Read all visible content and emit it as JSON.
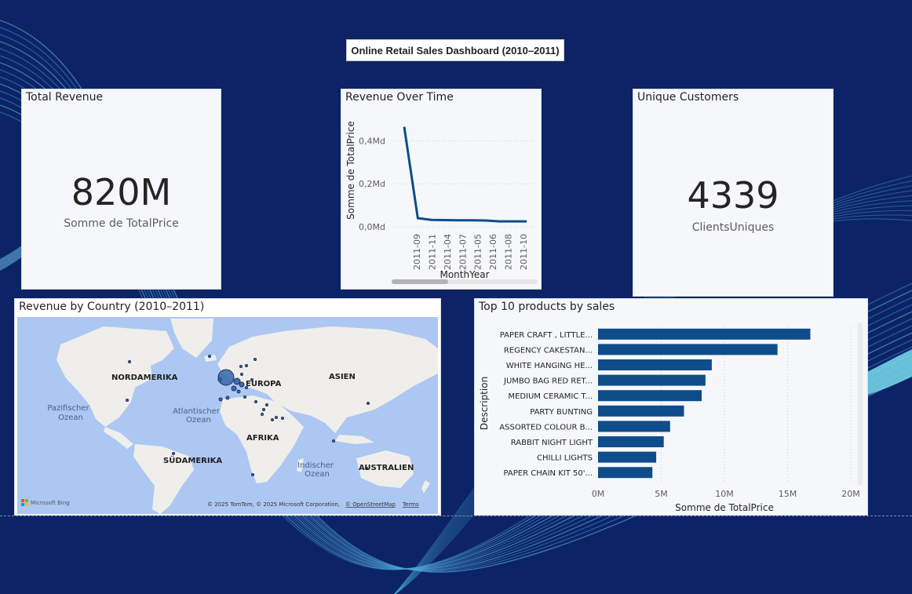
{
  "dashboard_title": "Online Retail Sales Dashboard (2010–2011)",
  "kpi_revenue": {
    "title": "Total Revenue",
    "value": "820M",
    "label": "Somme de TotalPrice"
  },
  "kpi_customers": {
    "title": "Unique Customers",
    "value": "4339",
    "label": "ClientsUniques"
  },
  "line_card": {
    "title": "Revenue Over Time"
  },
  "map_card": {
    "title": "Revenue by Country (2010–2011)",
    "labels": {
      "na": "NORDAMERIKA",
      "eu": "EUROPA",
      "asia": "ASIEN",
      "africa": "AFRIKA",
      "sa": "SÜDAMERIKA",
      "au": "AUSTRALIEN",
      "pac1": "Pazifischer",
      "pac2": "Ozean",
      "atl1": "Atlantischer",
      "atl2": "Ozean",
      "ind1": "Indischer",
      "ind2": "Ozean"
    },
    "bing": "Microsoft Bing",
    "copyright": "© 2025 TomTom, © 2025 Microsoft Corporation,",
    "osm_link": "© OpenStreetMap",
    "terms_link": "Terms"
  },
  "bar_card": {
    "title": "Top 10 products by sales"
  },
  "colors": {
    "series": "#0f4c8a",
    "background": "#0c2466",
    "card": "#f5f7fa"
  },
  "chart_data": [
    {
      "type": "line",
      "title": "Revenue Over Time",
      "xlabel": "MonthYear",
      "ylabel": "Somme de TotalPrice",
      "x_tick_labels": [
        "2011-09",
        "2011-11",
        "2011-04",
        "2011-07",
        "2011-05",
        "2011-06",
        "2011-08",
        "2011-10"
      ],
      "y_tick_labels": [
        "0,0Md",
        "0,2Md",
        "0,4Md"
      ],
      "y_ticks": [
        0,
        0.2,
        0.4
      ],
      "ylim": [
        0,
        0.5
      ],
      "series": [
        {
          "x_index": [
            0,
            1,
            2,
            3,
            4,
            5,
            6,
            7,
            8,
            9
          ],
          "values": [
            0.465,
            0.04,
            0.032,
            0.031,
            0.03,
            0.03,
            0.029,
            0.025,
            0.025,
            0.025
          ]
        }
      ],
      "grid": true
    },
    {
      "type": "bar",
      "orientation": "horizontal",
      "title": "Top 10 products by sales",
      "xlabel": "Somme de TotalPrice",
      "ylabel": "Description",
      "categories": [
        "PAPER CRAFT , LITTLE...",
        "REGENCY CAKESTAN...",
        "WHITE HANGING HE...",
        "JUMBO BAG RED RET...",
        "MEDIUM CERAMIC T...",
        "PARTY BUNTING",
        "ASSORTED COLOUR B...",
        "RABBIT NIGHT LIGHT",
        "CHILLI LIGHTS",
        "PAPER CHAIN KIT 50'..."
      ],
      "values": [
        16.8,
        14.2,
        9.0,
        8.5,
        8.2,
        6.8,
        5.7,
        5.2,
        4.6,
        4.3
      ],
      "value_unit": "M",
      "x_ticks": [
        0,
        5,
        10,
        15,
        20
      ],
      "x_tick_labels": [
        "0M",
        "5M",
        "10M",
        "15M",
        "20M"
      ],
      "xlim": [
        0,
        20
      ],
      "grid": true
    }
  ]
}
